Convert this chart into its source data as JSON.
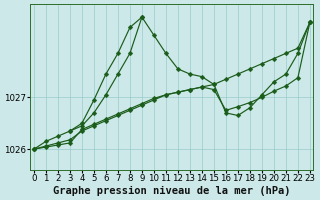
{
  "title": "Graphe pression niveau de la mer (hPa)",
  "xlim": [
    -0.3,
    23.3
  ],
  "ylim": [
    1025.6,
    1028.8
  ],
  "yticks": [
    1026,
    1027
  ],
  "xticks": [
    0,
    1,
    2,
    3,
    4,
    5,
    6,
    7,
    8,
    9,
    10,
    11,
    12,
    13,
    14,
    15,
    16,
    17,
    18,
    19,
    20,
    21,
    22,
    23
  ],
  "bg_color": "#cce8e8",
  "grid_color": "#99cccc",
  "line_color": "#1a5c1a",
  "lines": [
    {
      "x": [
        0,
        1,
        2,
        3,
        4,
        5,
        6,
        7,
        8,
        9,
        10,
        11,
        12,
        13,
        14,
        15,
        16,
        17,
        18,
        19,
        20,
        21,
        22,
        23
      ],
      "y": [
        1026.0,
        1026.15,
        1026.25,
        1026.35,
        1026.45,
        1026.7,
        1027.05,
        1027.45,
        1027.85,
        1028.55,
        1028.2,
        1027.85,
        1027.55,
        1027.45,
        1027.4,
        1027.25,
        1026.7,
        1026.65,
        1026.8,
        1027.05,
        1027.3,
        1027.45,
        1027.85,
        1028.45
      ]
    },
    {
      "x": [
        0,
        1,
        2,
        3,
        4,
        5,
        6,
        7,
        8,
        9,
        10,
        11,
        12,
        13,
        14,
        15,
        16,
        17,
        18,
        19,
        20,
        21,
        22,
        23
      ],
      "y": [
        1026.0,
        1026.06,
        1026.12,
        1026.18,
        1026.35,
        1026.45,
        1026.55,
        1026.65,
        1026.75,
        1026.85,
        1026.95,
        1027.05,
        1027.1,
        1027.15,
        1027.2,
        1027.15,
        1026.75,
        1026.82,
        1026.9,
        1027.0,
        1027.12,
        1027.22,
        1027.38,
        1028.45
      ]
    },
    {
      "x": [
        0,
        1,
        2,
        3,
        4,
        5,
        6,
        7,
        8,
        9,
        10,
        11,
        12,
        13,
        14,
        15,
        16,
        17,
        18,
        19,
        20,
        21,
        22,
        23
      ],
      "y": [
        1026.0,
        1026.04,
        1026.08,
        1026.12,
        1026.38,
        1026.48,
        1026.58,
        1026.68,
        1026.78,
        1026.88,
        1026.98,
        1027.05,
        1027.1,
        1027.15,
        1027.2,
        1027.25,
        1027.35,
        1027.45,
        1027.55,
        1027.65,
        1027.75,
        1027.85,
        1027.95,
        1028.45
      ]
    },
    {
      "x": [
        3,
        4,
        5,
        6,
        7,
        8,
        9
      ],
      "y": [
        1026.35,
        1026.5,
        1026.95,
        1027.45,
        1027.85,
        1028.35,
        1028.55
      ]
    }
  ],
  "marker_size": 2.5,
  "linewidth": 0.85,
  "tick_fontsize": 6.2,
  "title_fontsize": 7.5
}
